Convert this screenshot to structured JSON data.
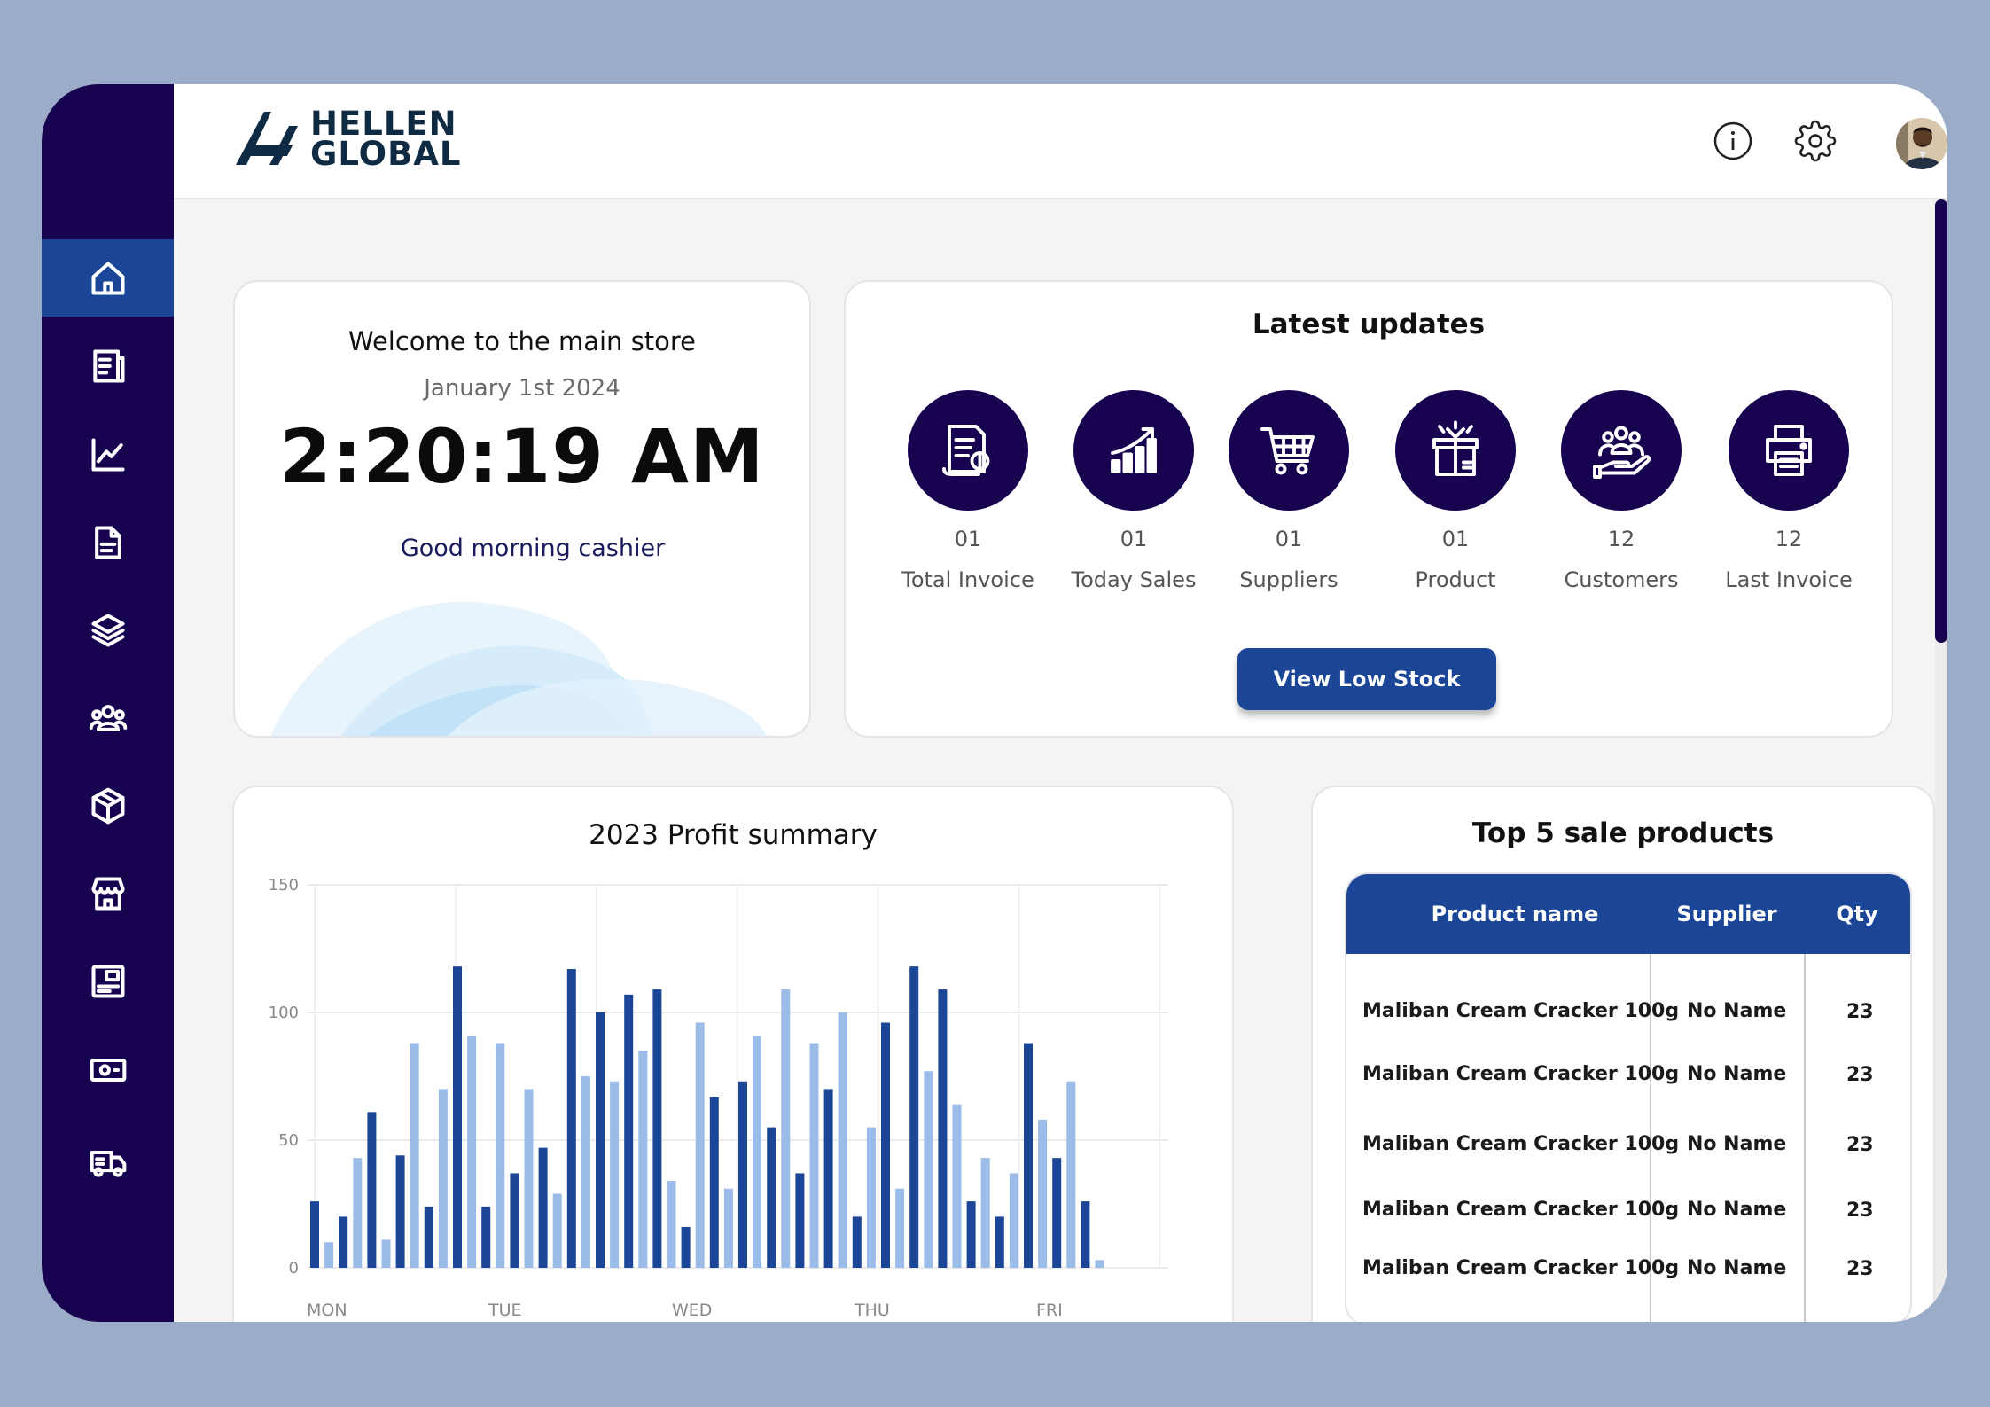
{
  "brand": {
    "line1": "HELLEN",
    "line2": "GLOBAL"
  },
  "sidebar": {
    "items": [
      {
        "name": "home",
        "icon": "home-icon",
        "active": true
      },
      {
        "name": "invoices",
        "icon": "receipt-icon"
      },
      {
        "name": "analytics",
        "icon": "line-chart-icon"
      },
      {
        "name": "documents",
        "icon": "document-icon"
      },
      {
        "name": "categories",
        "icon": "layers-icon"
      },
      {
        "name": "customers",
        "icon": "users-icon"
      },
      {
        "name": "products",
        "icon": "box-icon"
      },
      {
        "name": "store",
        "icon": "store-icon"
      },
      {
        "name": "reports",
        "icon": "dashboard-card-icon"
      },
      {
        "name": "cash",
        "icon": "cash-icon"
      },
      {
        "name": "delivery",
        "icon": "truck-icon"
      }
    ]
  },
  "header": {
    "info_icon": "info-icon",
    "settings_icon": "gear-icon",
    "avatar": "user-avatar"
  },
  "welcome": {
    "title": "Welcome to the main store",
    "date": "January 1st 2024",
    "time": "2:20:19 AM",
    "greeting": "Good morning cashier"
  },
  "updates": {
    "title": "Latest updates",
    "stats": [
      {
        "value": "01",
        "label": "Total Invoice",
        "icon": "invoice-icon"
      },
      {
        "value": "01",
        "label": "Today Sales",
        "icon": "sales-growth-icon"
      },
      {
        "value": "01",
        "label": "Suppliers",
        "icon": "shopping-cart-icon"
      },
      {
        "value": "01",
        "label": "Product",
        "icon": "product-box-icon"
      },
      {
        "value": "12",
        "label": "Customers",
        "icon": "customers-hand-icon"
      },
      {
        "value": "12",
        "label": "Last Invoice",
        "icon": "printer-icon"
      }
    ],
    "button": "View Low Stock"
  },
  "profit": {
    "title": "2023 Profit summary",
    "chart_data": {
      "type": "bar",
      "title": "2023 Profit summary",
      "ylim": [
        0,
        150
      ],
      "yticks": [
        0,
        50,
        100,
        150
      ],
      "xlabels": [
        "MON",
        "TUE",
        "WED",
        "THU",
        "FRI"
      ],
      "colors": {
        "dark": "#1B4596",
        "light": "#9BBCE8"
      },
      "bars": [
        {
          "v": 26,
          "s": "dark"
        },
        {
          "v": 10,
          "s": "light"
        },
        {
          "v": 20,
          "s": "dark"
        },
        {
          "v": 43,
          "s": "light"
        },
        {
          "v": 61,
          "s": "dark"
        },
        {
          "v": 11,
          "s": "light"
        },
        {
          "v": 44,
          "s": "dark"
        },
        {
          "v": 88,
          "s": "light"
        },
        {
          "v": 24,
          "s": "dark"
        },
        {
          "v": 70,
          "s": "light"
        },
        {
          "v": 118,
          "s": "dark"
        },
        {
          "v": 91,
          "s": "light"
        },
        {
          "v": 24,
          "s": "dark"
        },
        {
          "v": 88,
          "s": "light"
        },
        {
          "v": 37,
          "s": "dark"
        },
        {
          "v": 70,
          "s": "light"
        },
        {
          "v": 47,
          "s": "dark"
        },
        {
          "v": 29,
          "s": "light"
        },
        {
          "v": 117,
          "s": "dark"
        },
        {
          "v": 75,
          "s": "light"
        },
        {
          "v": 100,
          "s": "dark"
        },
        {
          "v": 73,
          "s": "light"
        },
        {
          "v": 107,
          "s": "dark"
        },
        {
          "v": 85,
          "s": "light"
        },
        {
          "v": 109,
          "s": "dark"
        },
        {
          "v": 34,
          "s": "light"
        },
        {
          "v": 16,
          "s": "dark"
        },
        {
          "v": 96,
          "s": "light"
        },
        {
          "v": 67,
          "s": "dark"
        },
        {
          "v": 31,
          "s": "light"
        },
        {
          "v": 73,
          "s": "dark"
        },
        {
          "v": 91,
          "s": "light"
        },
        {
          "v": 55,
          "s": "dark"
        },
        {
          "v": 109,
          "s": "light"
        },
        {
          "v": 37,
          "s": "dark"
        },
        {
          "v": 88,
          "s": "light"
        },
        {
          "v": 70,
          "s": "dark"
        },
        {
          "v": 100,
          "s": "light"
        },
        {
          "v": 20,
          "s": "dark"
        },
        {
          "v": 55,
          "s": "light"
        },
        {
          "v": 96,
          "s": "dark"
        },
        {
          "v": 31,
          "s": "light"
        },
        {
          "v": 118,
          "s": "dark"
        },
        {
          "v": 77,
          "s": "light"
        },
        {
          "v": 109,
          "s": "dark"
        },
        {
          "v": 64,
          "s": "light"
        },
        {
          "v": 26,
          "s": "dark"
        },
        {
          "v": 43,
          "s": "light"
        },
        {
          "v": 20,
          "s": "dark"
        },
        {
          "v": 37,
          "s": "light"
        },
        {
          "v": 88,
          "s": "dark"
        },
        {
          "v": 58,
          "s": "light"
        },
        {
          "v": 43,
          "s": "dark"
        },
        {
          "v": 73,
          "s": "light"
        },
        {
          "v": 26,
          "s": "dark"
        },
        {
          "v": 3,
          "s": "light"
        }
      ]
    }
  },
  "top5": {
    "title": "Top 5 sale products",
    "columns": [
      "Product name",
      "Supplier",
      "Qty"
    ],
    "rows": [
      [
        "Maliban Cream Cracker 100g",
        "No Name",
        "23"
      ],
      [
        "Maliban Cream Cracker 100g",
        "No Name",
        "23"
      ],
      [
        "Maliban Cream Cracker 100g",
        "No Name",
        "23"
      ],
      [
        "Maliban Cream Cracker 100g",
        "No Name",
        "23"
      ],
      [
        "Maliban Cream Cracker 100g",
        "No Name",
        "23"
      ]
    ]
  }
}
